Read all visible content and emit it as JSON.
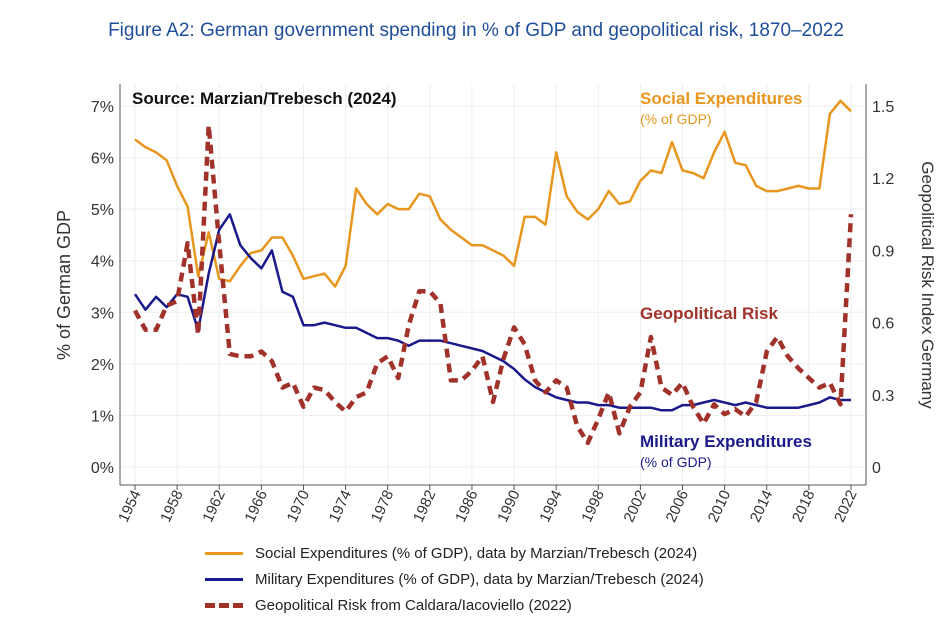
{
  "chart_data": {
    "type": "line",
    "title": "Figure A2: German government spending in % of GDP and geopolitical risk, 1870–2022",
    "source_note": "Source: Marzian/Trebesch (2024)",
    "ylabel": "% of German GDP",
    "y2label": "Geopolitical Risk Index Germany",
    "xlim": [
      1954,
      2022
    ],
    "ylim": [
      0,
      7
    ],
    "y2lim": [
      0,
      1.5
    ],
    "x_ticks": [
      "1954",
      "1958",
      "1962",
      "1966",
      "1970",
      "1974",
      "1978",
      "1982",
      "1986",
      "1990",
      "1994",
      "1998",
      "2002",
      "2006",
      "2010",
      "2014",
      "2018",
      "2022"
    ],
    "y_ticks": [
      "0%",
      "1%",
      "2%",
      "3%",
      "4%",
      "5%",
      "6%",
      "7%"
    ],
    "y2_ticks": [
      "0",
      "0.3",
      "0.6",
      "0.9",
      "1.2",
      "1.5"
    ],
    "grid": true,
    "colors": {
      "social": "#e8961e",
      "military": "#1a1a8c",
      "risk": "#a0322a",
      "title": "#1f4e9a"
    },
    "annotations": {
      "social_title": "Social Expenditures",
      "social_sub": "(% of GDP)",
      "risk_title": "Geopolitical Risk",
      "military_title": "Military Expenditures",
      "military_sub": "(% of GDP)"
    },
    "start_year": 1954,
    "series": [
      {
        "name": "Social Expenditures (% of GDP), data by Marzian/Trebesch (2024)",
        "axis": "left",
        "values": [
          6.35,
          6.2,
          6.1,
          5.95,
          5.45,
          5.05,
          3.7,
          4.55,
          3.65,
          3.6,
          3.9,
          4.15,
          4.2,
          4.45,
          4.45,
          4.1,
          3.65,
          3.7,
          3.75,
          3.5,
          3.9,
          5.4,
          5.1,
          4.9,
          5.1,
          5.0,
          5.0,
          5.3,
          5.25,
          4.8,
          4.6,
          4.45,
          4.3,
          4.3,
          4.2,
          4.1,
          3.9,
          4.85,
          4.85,
          4.7,
          6.1,
          5.25,
          4.95,
          4.8,
          5.0,
          5.35,
          5.1,
          5.15,
          5.55,
          5.75,
          5.7,
          6.3,
          5.75,
          5.7,
          5.6,
          6.1,
          6.5,
          5.9,
          5.85,
          5.45,
          5.35,
          5.35,
          5.4,
          5.45,
          5.4,
          5.4,
          6.85,
          7.1,
          6.9
        ]
      },
      {
        "name": "Military Expenditures (% of GDP), data by Marzian/Trebesch (2024)",
        "axis": "left",
        "values": [
          3.35,
          3.05,
          3.3,
          3.1,
          3.35,
          3.3,
          2.65,
          3.75,
          4.6,
          4.9,
          4.3,
          4.05,
          3.85,
          4.2,
          3.4,
          3.3,
          2.75,
          2.75,
          2.8,
          2.75,
          2.7,
          2.7,
          2.6,
          2.5,
          2.5,
          2.45,
          2.35,
          2.45,
          2.45,
          2.45,
          2.4,
          2.35,
          2.3,
          2.25,
          2.15,
          2.05,
          1.9,
          1.7,
          1.55,
          1.45,
          1.35,
          1.3,
          1.25,
          1.25,
          1.2,
          1.2,
          1.15,
          1.15,
          1.15,
          1.15,
          1.1,
          1.1,
          1.2,
          1.2,
          1.25,
          1.3,
          1.25,
          1.2,
          1.25,
          1.2,
          1.15,
          1.15,
          1.15,
          1.15,
          1.2,
          1.25,
          1.35,
          1.3,
          1.3
        ]
      },
      {
        "name": "Geopolitical Risk from Caldara/Iacoviello (2022)",
        "axis": "right",
        "values": [
          0.65,
          0.57,
          0.57,
          0.67,
          0.69,
          0.93,
          0.55,
          1.42,
          0.93,
          0.47,
          0.46,
          0.46,
          0.48,
          0.44,
          0.33,
          0.35,
          0.25,
          0.33,
          0.32,
          0.27,
          0.23,
          0.29,
          0.31,
          0.43,
          0.46,
          0.37,
          0.59,
          0.73,
          0.73,
          0.68,
          0.36,
          0.36,
          0.4,
          0.46,
          0.27,
          0.45,
          0.58,
          0.51,
          0.36,
          0.31,
          0.36,
          0.33,
          0.17,
          0.1,
          0.2,
          0.31,
          0.14,
          0.25,
          0.31,
          0.54,
          0.33,
          0.3,
          0.35,
          0.25,
          0.18,
          0.26,
          0.22,
          0.24,
          0.21,
          0.27,
          0.48,
          0.54,
          0.46,
          0.41,
          0.37,
          0.33,
          0.35,
          0.26,
          1.05
        ]
      }
    ],
    "legend_position": "bottom"
  }
}
